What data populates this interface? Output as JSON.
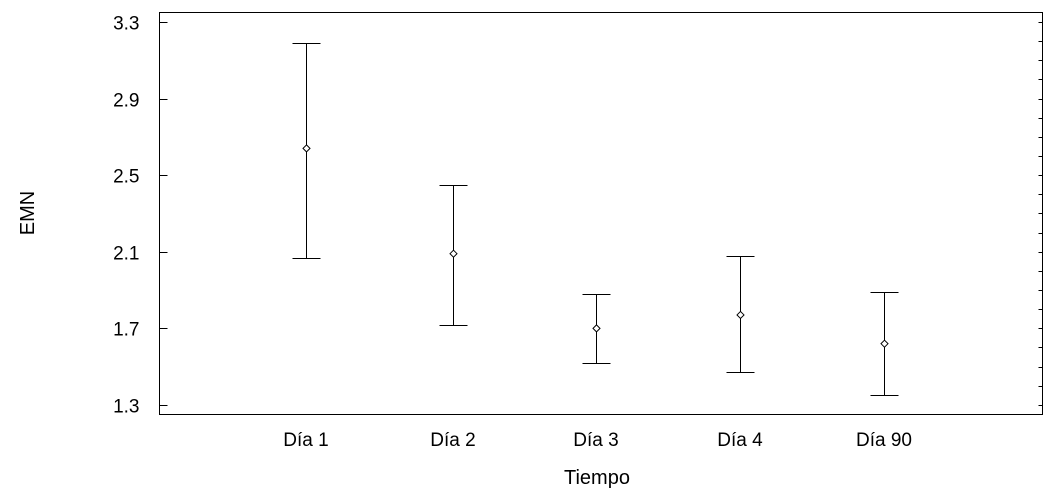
{
  "chart_data": {
    "type": "scatter",
    "title": "",
    "xlabel": "Tiempo",
    "ylabel": "EMN",
    "ylim": [
      1.25,
      3.35
    ],
    "yticks": [
      1.3,
      1.7,
      2.1,
      2.5,
      2.9,
      3.3
    ],
    "ytick_labels": [
      "1.3",
      "1.7",
      "2.1",
      "2.5",
      "2.9",
      "3.3"
    ],
    "categories": [
      "Día 1",
      "Día 2",
      "Día 3",
      "Día 4",
      "Día 90"
    ],
    "points": [
      {
        "category": "Día 1",
        "mean": 2.64,
        "lower": 2.07,
        "upper": 3.19
      },
      {
        "category": "Día 2",
        "mean": 2.09,
        "lower": 1.72,
        "upper": 2.45
      },
      {
        "category": "Día 3",
        "mean": 1.7,
        "lower": 1.52,
        "upper": 1.88
      },
      {
        "category": "Día 4",
        "mean": 1.77,
        "lower": 1.47,
        "upper": 2.08
      },
      {
        "category": "Día 90",
        "mean": 1.62,
        "lower": 1.35,
        "upper": 1.89
      }
    ],
    "grid": false,
    "legend": "none",
    "colors": {
      "line": "#000000",
      "background": "#ffffff"
    }
  }
}
